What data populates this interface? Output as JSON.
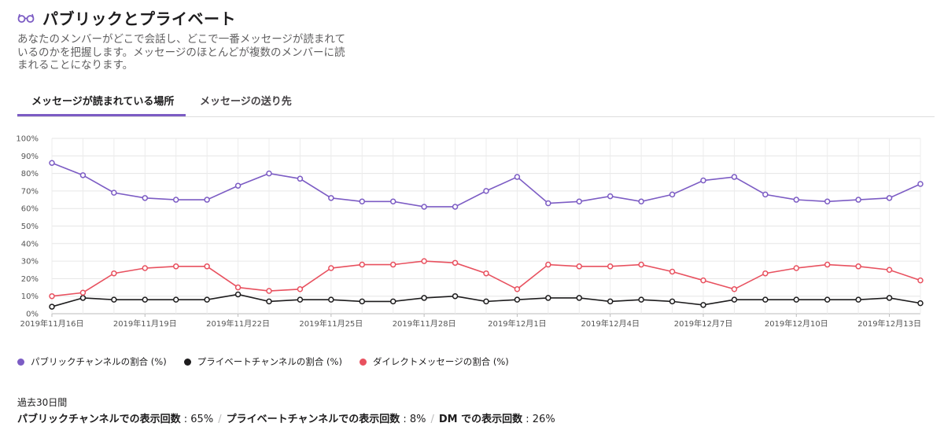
{
  "header": {
    "icon": "glasses-icon",
    "title": "パブリックとプライベート",
    "description": "あなたのメンバーがどこで会話し、どこで一番メッセージが読まれているのかを把握します。メッセージのほとんどが複数のメンバーに読まれることになります。"
  },
  "tabs": [
    {
      "label": "メッセージが読まれている場所",
      "active": true
    },
    {
      "label": "メッセージの送り先",
      "active": false
    }
  ],
  "chart_data": {
    "type": "line",
    "grid": true,
    "ylim": [
      0,
      100
    ],
    "y_ticks": [
      "0%",
      "10%",
      "20%",
      "30%",
      "40%",
      "50%",
      "60%",
      "70%",
      "80%",
      "90%",
      "100%"
    ],
    "x": [
      "2019-11-16",
      "2019-11-17",
      "2019-11-18",
      "2019-11-19",
      "2019-11-20",
      "2019-11-21",
      "2019-11-22",
      "2019-11-23",
      "2019-11-24",
      "2019-11-25",
      "2019-11-26",
      "2019-11-27",
      "2019-11-28",
      "2019-11-29",
      "2019-11-30",
      "2019-12-01",
      "2019-12-02",
      "2019-12-03",
      "2019-12-04",
      "2019-12-05",
      "2019-12-06",
      "2019-12-07",
      "2019-12-08",
      "2019-12-09",
      "2019-12-10",
      "2019-12-11",
      "2019-12-12",
      "2019-12-13",
      "2019-12-14"
    ],
    "x_tick_labels": [
      {
        "index": 0,
        "label": "2019年11月16日"
      },
      {
        "index": 3,
        "label": "2019年11月19日"
      },
      {
        "index": 6,
        "label": "2019年11月22日"
      },
      {
        "index": 9,
        "label": "2019年11月25日"
      },
      {
        "index": 12,
        "label": "2019年11月28日"
      },
      {
        "index": 15,
        "label": "2019年12月1日"
      },
      {
        "index": 18,
        "label": "2019年12月4日"
      },
      {
        "index": 21,
        "label": "2019年12月7日"
      },
      {
        "index": 24,
        "label": "2019年12月10日"
      },
      {
        "index": 27,
        "label": "2019年12月13日"
      }
    ],
    "series": [
      {
        "name": "パブリックチャンネルの割合 (%)",
        "color": "#7c5cc4",
        "values": [
          86,
          79,
          69,
          66,
          65,
          65,
          73,
          80,
          77,
          66,
          64,
          64,
          61,
          61,
          70,
          78,
          63,
          64,
          67,
          64,
          68,
          76,
          78,
          68,
          65,
          64,
          65,
          66,
          74
        ]
      },
      {
        "name": "プライベートチャンネルの割合 (%)",
        "color": "#1d1c1d",
        "values": [
          4,
          9,
          8,
          8,
          8,
          8,
          11,
          7,
          8,
          8,
          7,
          7,
          9,
          10,
          7,
          8,
          9,
          9,
          7,
          8,
          7,
          5,
          8,
          8,
          8,
          8,
          8,
          9,
          6
        ]
      },
      {
        "name": "ダイレクトメッセージの割合 (%)",
        "color": "#e8515f",
        "values": [
          10,
          12,
          23,
          26,
          27,
          27,
          15,
          13,
          14,
          26,
          28,
          28,
          30,
          29,
          23,
          14,
          28,
          27,
          27,
          28,
          24,
          19,
          14,
          23,
          26,
          28,
          27,
          25,
          19
        ]
      }
    ]
  },
  "summary": {
    "period_label": "過去30日間",
    "items": [
      {
        "label": "パブリックチャンネルでの表示回数",
        "value": "65%"
      },
      {
        "label": "プライベートチャンネルでの表示回数",
        "value": "8%"
      },
      {
        "label": "DM での表示回数",
        "value": "26%"
      }
    ]
  }
}
